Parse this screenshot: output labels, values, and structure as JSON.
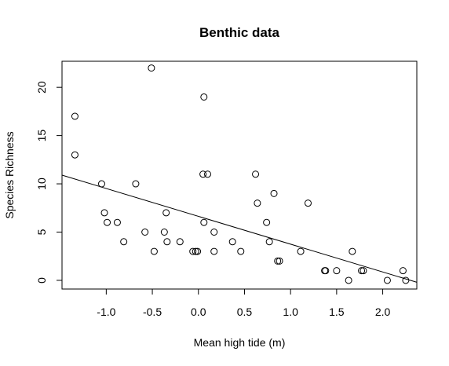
{
  "chart_data": {
    "type": "scatter",
    "title": "Benthic data",
    "xlabel": "Mean high tide (m)",
    "ylabel": "Species Richness",
    "xlim": [
      -1.48,
      2.37
    ],
    "ylim": [
      -0.9,
      22.7
    ],
    "xticks": [
      -1.0,
      -0.5,
      0.0,
      0.5,
      1.0,
      1.5,
      2.0
    ],
    "xtick_labels": [
      "-1.0",
      "-0.5",
      "0.0",
      "0.5",
      "1.0",
      "1.5",
      "2.0"
    ],
    "yticks": [
      0,
      5,
      10,
      15,
      20
    ],
    "ytick_labels": [
      "0",
      "5",
      "10",
      "15",
      "20"
    ],
    "grid": false,
    "points": [
      {
        "x": -1.34,
        "y": 17
      },
      {
        "x": -1.34,
        "y": 13
      },
      {
        "x": -1.05,
        "y": 10
      },
      {
        "x": -1.02,
        "y": 7
      },
      {
        "x": -0.99,
        "y": 6
      },
      {
        "x": -0.88,
        "y": 6
      },
      {
        "x": -0.81,
        "y": 4
      },
      {
        "x": -0.68,
        "y": 10
      },
      {
        "x": -0.58,
        "y": 5
      },
      {
        "x": -0.51,
        "y": 22
      },
      {
        "x": -0.48,
        "y": 3
      },
      {
        "x": -0.37,
        "y": 5
      },
      {
        "x": -0.35,
        "y": 7
      },
      {
        "x": -0.34,
        "y": 4
      },
      {
        "x": -0.2,
        "y": 4
      },
      {
        "x": -0.06,
        "y": 3
      },
      {
        "x": -0.03,
        "y": 3
      },
      {
        "x": -0.01,
        "y": 3
      },
      {
        "x": 0.05,
        "y": 11
      },
      {
        "x": 0.06,
        "y": 19
      },
      {
        "x": 0.06,
        "y": 6
      },
      {
        "x": 0.1,
        "y": 11
      },
      {
        "x": 0.17,
        "y": 5
      },
      {
        "x": 0.17,
        "y": 3
      },
      {
        "x": 0.37,
        "y": 4
      },
      {
        "x": 0.46,
        "y": 3
      },
      {
        "x": 0.62,
        "y": 11
      },
      {
        "x": 0.64,
        "y": 8
      },
      {
        "x": 0.74,
        "y": 6
      },
      {
        "x": 0.77,
        "y": 4
      },
      {
        "x": 0.82,
        "y": 9
      },
      {
        "x": 0.86,
        "y": 2
      },
      {
        "x": 0.88,
        "y": 2
      },
      {
        "x": 1.11,
        "y": 3
      },
      {
        "x": 1.19,
        "y": 8
      },
      {
        "x": 1.37,
        "y": 1
      },
      {
        "x": 1.38,
        "y": 1
      },
      {
        "x": 1.5,
        "y": 1
      },
      {
        "x": 1.63,
        "y": 0
      },
      {
        "x": 1.67,
        "y": 3
      },
      {
        "x": 1.77,
        "y": 1
      },
      {
        "x": 1.79,
        "y": 1
      },
      {
        "x": 2.05,
        "y": 0
      },
      {
        "x": 2.22,
        "y": 1
      },
      {
        "x": 2.25,
        "y": 0
      }
    ],
    "regression_line": {
      "x": [
        -1.48,
        2.37
      ],
      "y": [
        10.9,
        -0.2
      ]
    }
  }
}
